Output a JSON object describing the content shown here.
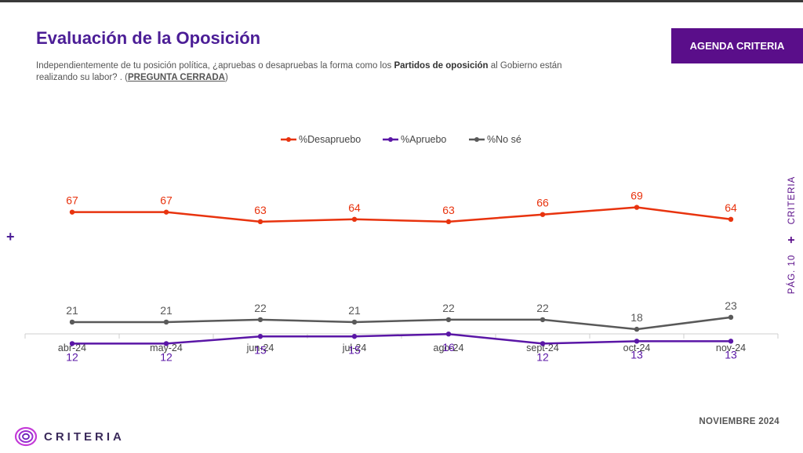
{
  "header": {
    "title": "Evaluación de la Oposición",
    "subtitle_pre": "Independientemente de tu posición política, ¿apruebas o desapruebas la forma como los ",
    "subtitle_bold": "Partidos de oposición",
    "subtitle_post": " al Gobierno están realizando su labor? . (",
    "subtitle_tag": "PREGUNTA CERRADA",
    "subtitle_end": ")",
    "badge": "AGENDA CRITERIA"
  },
  "side": {
    "brand": "CRITERIA",
    "plus": "+",
    "page": "PÁG. 10"
  },
  "left_plus": "+",
  "footer": {
    "date": "NOVIEMBRE 2024",
    "logo_text": "CRITERIA"
  },
  "colors": {
    "brand": "#4b1d96",
    "badge": "#5a0e8a"
  },
  "chart_data": {
    "type": "line",
    "categories": [
      "abr-24",
      "may-24",
      "jun-24",
      "jul-24",
      "ago-24",
      "sept-24",
      "oct-24",
      "nov-24"
    ],
    "series": [
      {
        "name": "%Desapruebo",
        "color": "#e8330e",
        "label_pos": "above",
        "values": [
          67,
          67,
          63,
          64,
          63,
          66,
          69,
          64
        ]
      },
      {
        "name": "%Apruebo",
        "color": "#5a16a6",
        "label_pos": "below",
        "values": [
          12,
          12,
          15,
          15,
          16,
          12,
          13,
          13
        ]
      },
      {
        "name": "%No sé",
        "color": "#595959",
        "label_pos": "above",
        "values": [
          21,
          21,
          22,
          21,
          22,
          22,
          18,
          23
        ]
      }
    ],
    "legend_position": "top-center",
    "grid": false
  }
}
